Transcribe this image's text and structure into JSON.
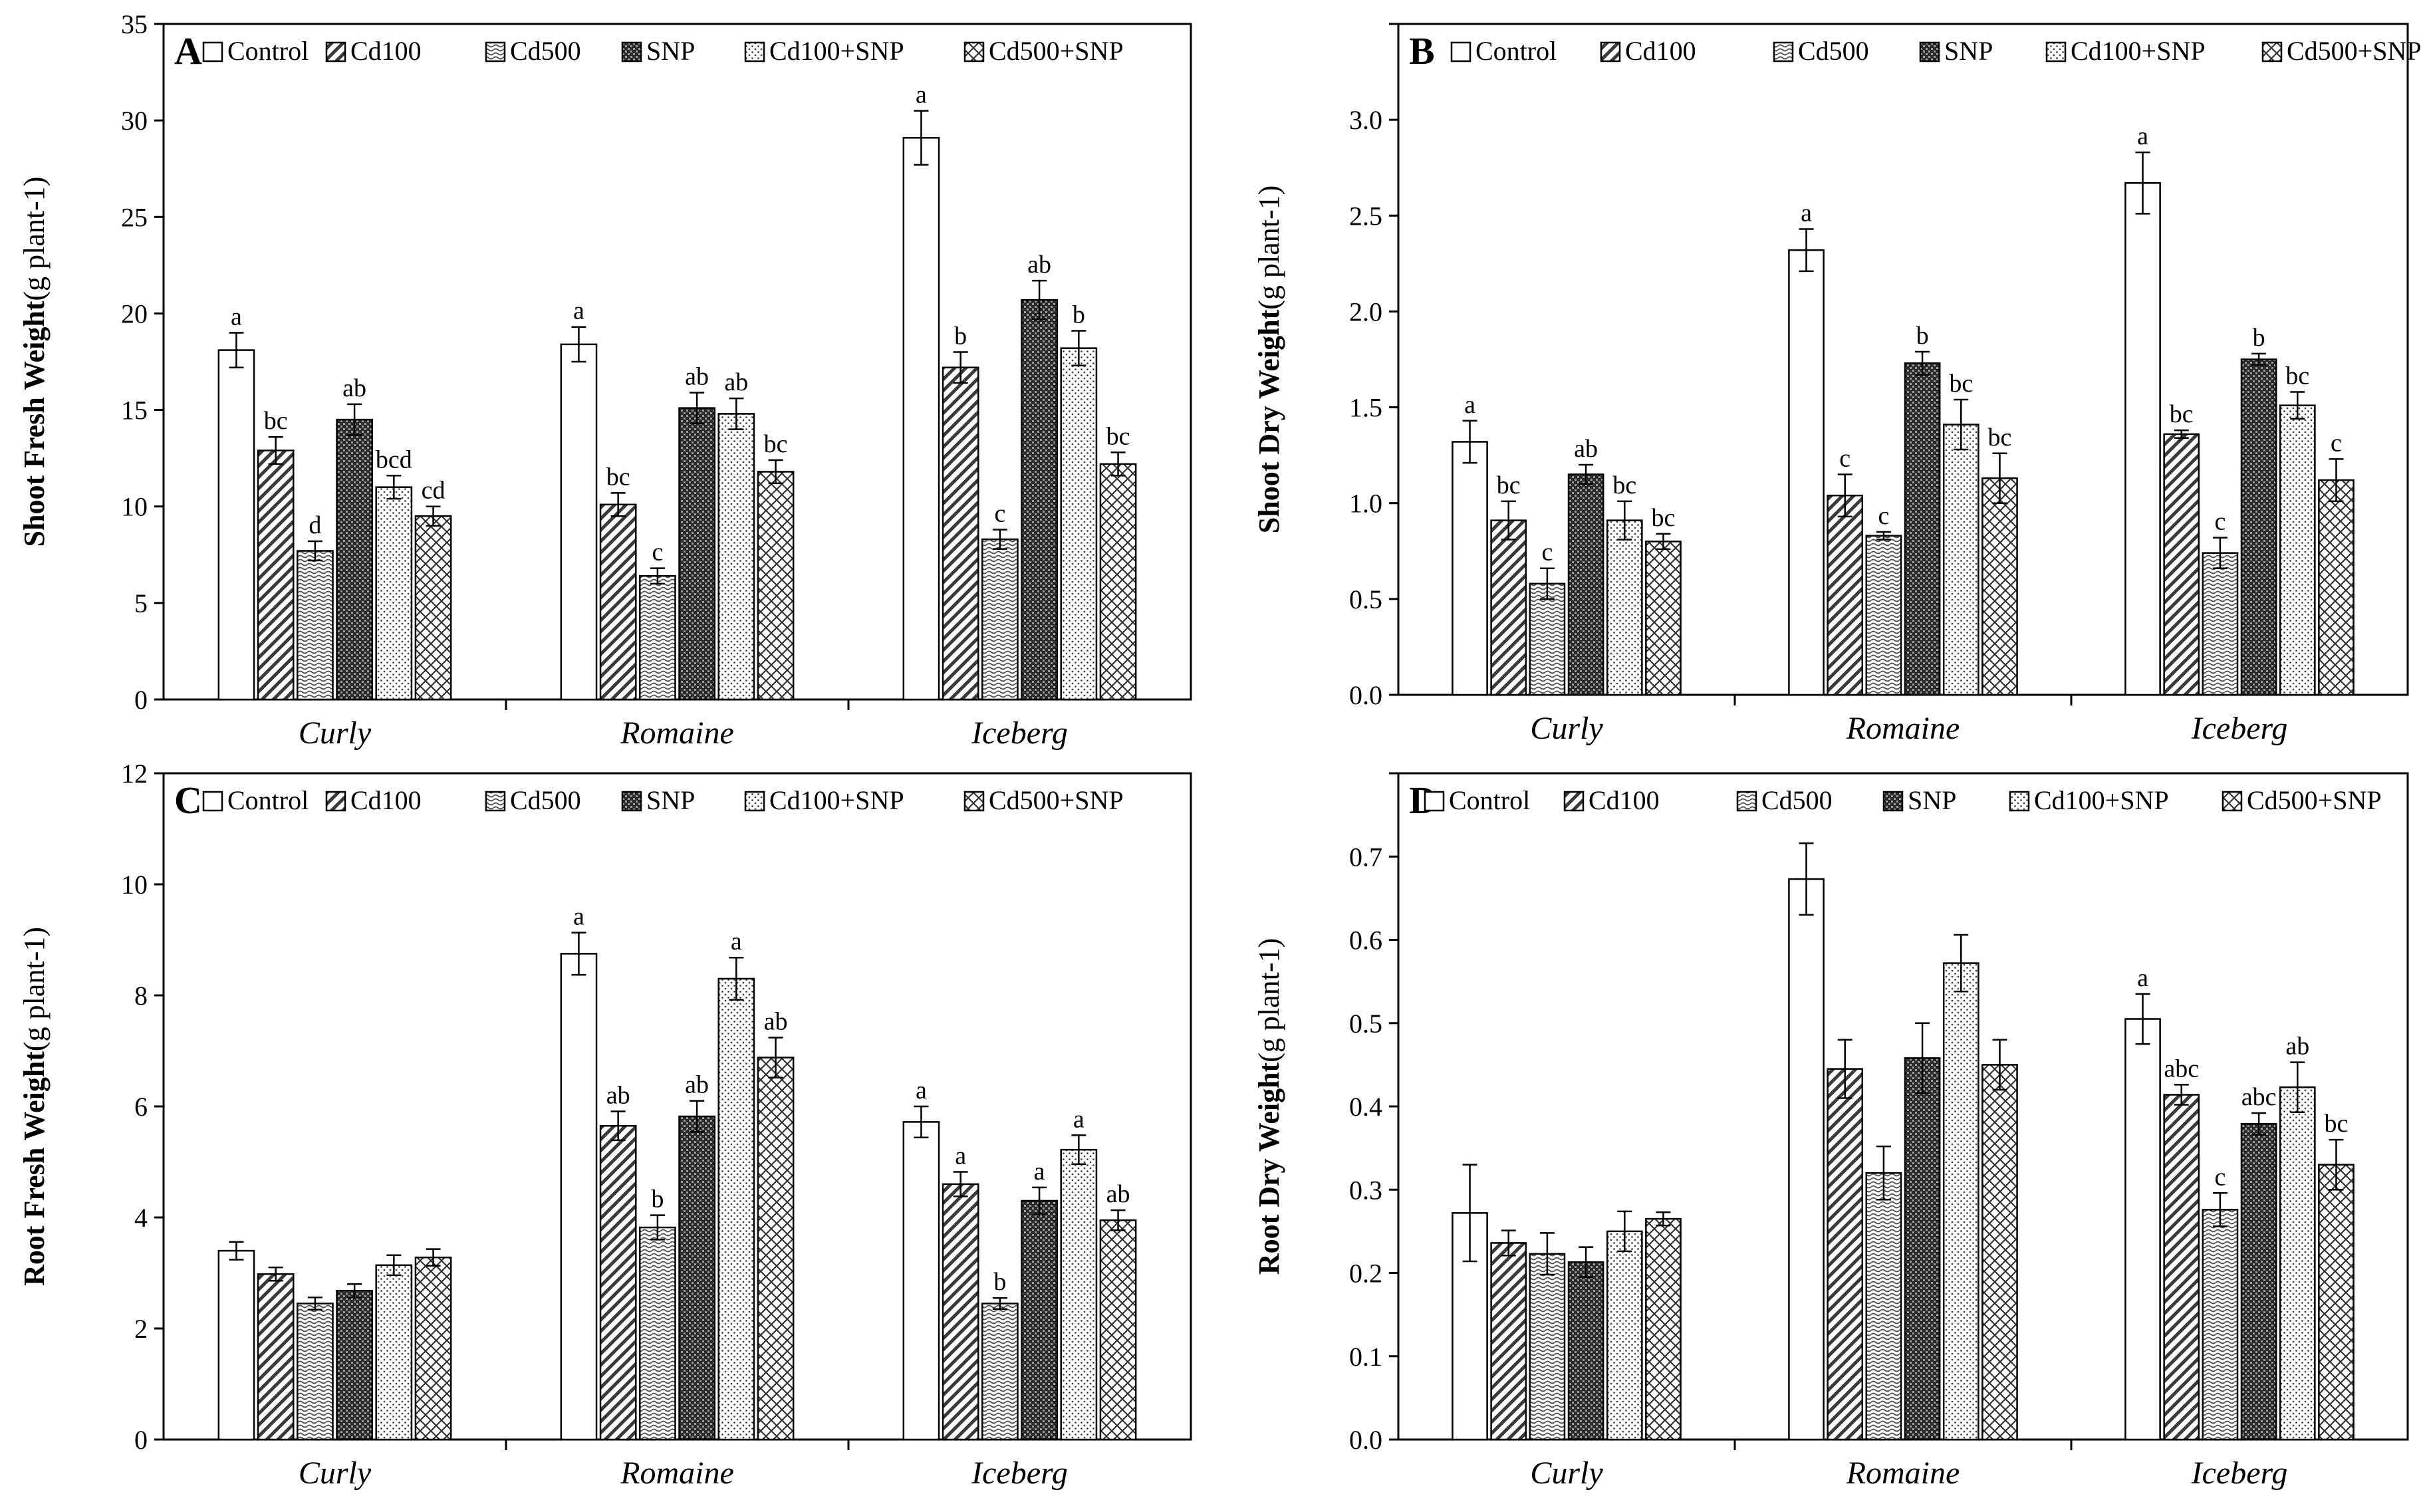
{
  "legend": [
    "Control",
    "Cd100",
    "Cd500",
    "SNP",
    "Cd100+SNP",
    "Cd500+SNP"
  ],
  "categories": [
    "Curly",
    "Romaine",
    "Iceberg"
  ],
  "chart_data": [
    {
      "type": "bar",
      "panel": "A",
      "ylabel": "Shoot Fresh Weight",
      "yunit": "(g plant-1)",
      "ylim": [
        0,
        35
      ],
      "yticks": [
        "0",
        "5",
        "10",
        "15",
        "20",
        "25",
        "30",
        "35"
      ],
      "categories": [
        "Curly",
        "Romaine",
        "Iceberg"
      ],
      "series": [
        {
          "name": "Control",
          "values": [
            18.1,
            18.4,
            29.1
          ],
          "errors": [
            0.9,
            0.9,
            1.4
          ],
          "labels": [
            "a",
            "a",
            "a"
          ]
        },
        {
          "name": "Cd100",
          "values": [
            12.9,
            10.1,
            17.2
          ],
          "errors": [
            0.7,
            0.6,
            0.8
          ],
          "labels": [
            "bc",
            "bc",
            "b"
          ]
        },
        {
          "name": "Cd500",
          "values": [
            7.7,
            6.4,
            8.3
          ],
          "errors": [
            0.5,
            0.4,
            0.5
          ],
          "labels": [
            "d",
            "c",
            "c"
          ]
        },
        {
          "name": "SNP",
          "values": [
            14.5,
            15.1,
            20.7
          ],
          "errors": [
            0.8,
            0.8,
            1.0
          ],
          "labels": [
            "ab",
            "ab",
            "ab"
          ]
        },
        {
          "name": "Cd100+SNP",
          "values": [
            11.0,
            14.8,
            18.2
          ],
          "errors": [
            0.6,
            0.8,
            0.9
          ],
          "labels": [
            "bcd",
            "ab",
            "b"
          ]
        },
        {
          "name": "Cd500+SNP",
          "values": [
            9.5,
            11.8,
            12.2
          ],
          "errors": [
            0.5,
            0.6,
            0.6
          ],
          "labels": [
            "cd",
            "bc",
            "bc"
          ]
        }
      ]
    },
    {
      "type": "bar",
      "panel": "B",
      "ylabel": "Shoot Dry Weight",
      "yunit": "(g plant-1)",
      "ylim": [
        0,
        3.5
      ],
      "yticks": [
        "0.0",
        "0.5",
        "1.0",
        "1.5",
        "2.0",
        "2.5",
        "3.0",
        ""
      ],
      "categories": [
        "Curly",
        "Romaine",
        "Iceberg"
      ],
      "series": [
        {
          "name": "Control",
          "values": [
            1.32,
            2.32,
            2.67
          ],
          "errors": [
            0.11,
            0.11,
            0.16
          ],
          "labels": [
            "a",
            "a",
            "a"
          ]
        },
        {
          "name": "Cd100",
          "values": [
            0.91,
            1.04,
            1.36
          ],
          "errors": [
            0.1,
            0.11,
            0.02
          ],
          "labels": [
            "bc",
            "c",
            "bc"
          ]
        },
        {
          "name": "Cd500",
          "values": [
            0.58,
            0.83,
            0.74
          ],
          "errors": [
            0.08,
            0.02,
            0.08
          ],
          "labels": [
            "c",
            "c",
            "c"
          ]
        },
        {
          "name": "SNP",
          "values": [
            1.15,
            1.73,
            1.75
          ],
          "errors": [
            0.05,
            0.06,
            0.03
          ],
          "labels": [
            "ab",
            "b",
            "b"
          ]
        },
        {
          "name": "Cd100+SNP",
          "values": [
            0.91,
            1.41,
            1.51
          ],
          "errors": [
            0.1,
            0.13,
            0.07
          ],
          "labels": [
            "bc",
            "bc",
            "bc"
          ]
        },
        {
          "name": "Cd500+SNP",
          "values": [
            0.8,
            1.13,
            1.12
          ],
          "errors": [
            0.04,
            0.13,
            0.11
          ],
          "labels": [
            "bc",
            "bc",
            "c"
          ]
        }
      ]
    },
    {
      "type": "bar",
      "panel": "C",
      "ylabel": "Root Fresh Weight",
      "yunit": "(g plant-1)",
      "ylim": [
        0,
        12
      ],
      "yticks": [
        "0",
        "2",
        "4",
        "6",
        "8",
        "10",
        "12"
      ],
      "categories": [
        "Curly",
        "Romaine",
        "Iceberg"
      ],
      "series": [
        {
          "name": "Control",
          "values": [
            3.4,
            8.75,
            5.72
          ],
          "errors": [
            0.16,
            0.38,
            0.28
          ],
          "labels": [
            "",
            "a",
            "a"
          ]
        },
        {
          "name": "Cd100",
          "values": [
            2.98,
            5.65,
            4.6
          ],
          "errors": [
            0.12,
            0.26,
            0.22
          ],
          "labels": [
            "",
            "ab",
            "a"
          ]
        },
        {
          "name": "Cd500",
          "values": [
            2.45,
            3.82,
            2.45
          ],
          "errors": [
            0.11,
            0.22,
            0.1
          ],
          "labels": [
            "",
            "b",
            "b"
          ]
        },
        {
          "name": "SNP",
          "values": [
            2.68,
            5.82,
            4.3
          ],
          "errors": [
            0.12,
            0.28,
            0.24
          ],
          "labels": [
            "",
            "ab",
            "a"
          ]
        },
        {
          "name": "Cd100+SNP",
          "values": [
            3.14,
            8.3,
            5.22
          ],
          "errors": [
            0.18,
            0.38,
            0.26
          ],
          "labels": [
            "",
            "a",
            "a"
          ]
        },
        {
          "name": "Cd500+SNP",
          "values": [
            3.28,
            6.88,
            3.95
          ],
          "errors": [
            0.15,
            0.36,
            0.18
          ],
          "labels": [
            "",
            "ab",
            "ab"
          ]
        }
      ]
    },
    {
      "type": "bar",
      "panel": "D",
      "ylabel": "Root Dry Weight",
      "yunit": "(g plant-1)",
      "ylim": [
        0,
        0.8
      ],
      "yticks": [
        "0.0",
        "0.1",
        "0.2",
        "0.3",
        "0.4",
        "0.5",
        "0.6",
        "0.7",
        ""
      ],
      "categories": [
        "Curly",
        "Romaine",
        "Iceberg"
      ],
      "series": [
        {
          "name": "Control",
          "values": [
            0.272,
            0.673,
            0.505
          ],
          "errors": [
            0.058,
            0.043,
            0.03
          ],
          "labels": [
            "",
            "",
            "a"
          ]
        },
        {
          "name": "Cd100",
          "values": [
            0.236,
            0.445,
            0.414
          ],
          "errors": [
            0.015,
            0.035,
            0.012
          ],
          "labels": [
            "",
            "",
            "abc"
          ]
        },
        {
          "name": "Cd500",
          "values": [
            0.223,
            0.32,
            0.276
          ],
          "errors": [
            0.025,
            0.032,
            0.02
          ],
          "labels": [
            "",
            "",
            "c"
          ]
        },
        {
          "name": "SNP",
          "values": [
            0.213,
            0.458,
            0.379
          ],
          "errors": [
            0.018,
            0.042,
            0.013
          ],
          "labels": [
            "",
            "",
            "abc"
          ]
        },
        {
          "name": "Cd100+SNP",
          "values": [
            0.25,
            0.572,
            0.423
          ],
          "errors": [
            0.024,
            0.034,
            0.03
          ],
          "labels": [
            "",
            "",
            "ab"
          ]
        },
        {
          "name": "Cd500+SNP",
          "values": [
            0.265,
            0.45,
            0.33
          ],
          "errors": [
            0.008,
            0.03,
            0.03
          ],
          "labels": [
            "",
            "",
            "bc"
          ]
        }
      ]
    }
  ]
}
